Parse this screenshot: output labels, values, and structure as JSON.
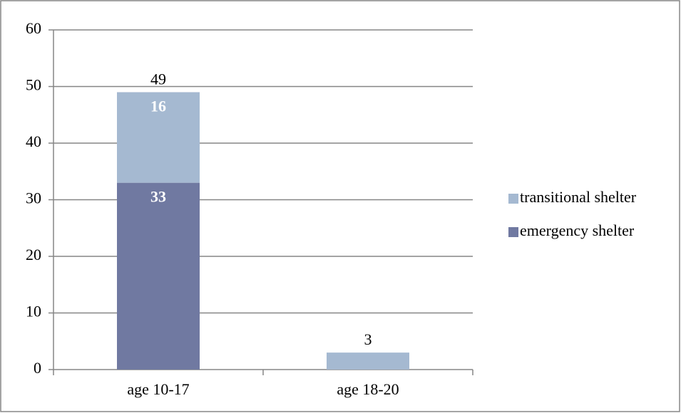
{
  "chart_data": {
    "type": "stacked_bar",
    "categories": [
      "age 10-17",
      "age 18-20"
    ],
    "series": [
      {
        "name": "emergency shelter",
        "color": "#7079a1",
        "values": [
          33,
          null
        ],
        "value_labels": [
          "33",
          null
        ]
      },
      {
        "name": "transitional shelter",
        "color": "#a5b9d1",
        "values": [
          16,
          3
        ],
        "value_labels": [
          "16",
          null
        ]
      }
    ],
    "totals": [
      49,
      3
    ],
    "ylim": [
      0,
      60
    ],
    "yticks": [
      0,
      10,
      20,
      30,
      40,
      50,
      60
    ],
    "grid": true,
    "legend": "right"
  }
}
